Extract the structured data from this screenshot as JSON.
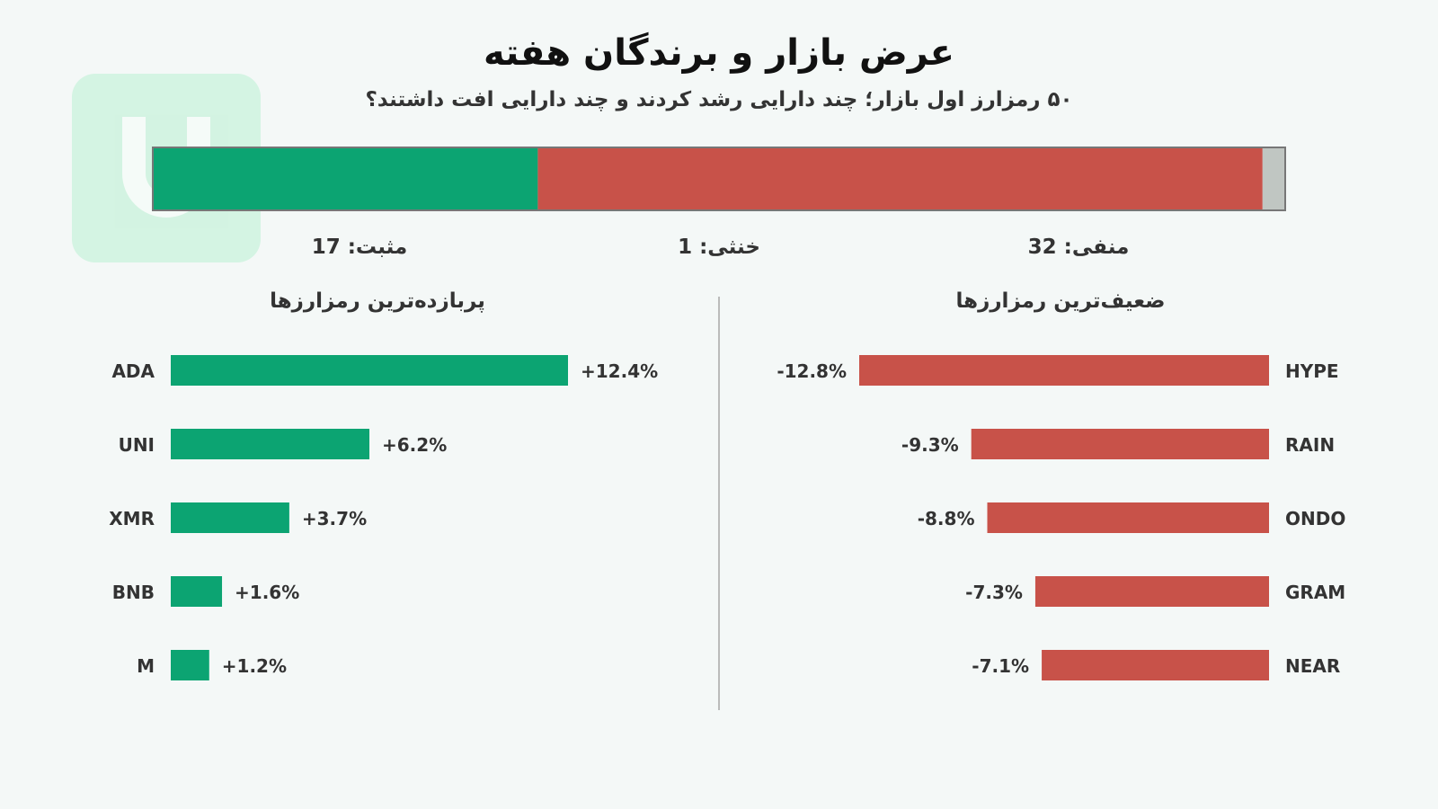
{
  "chart_data": [
    {
      "type": "bar",
      "title": "عرض بازار و برندگان هفته",
      "subtitle": "۵۰ رمزارز اول بازار؛ چند دارایی رشد کردند و چند دارایی افت داشتند؟",
      "categories": [
        "مثبت",
        "خنثی",
        "منفی"
      ],
      "values": [
        17,
        1,
        32
      ],
      "labels": [
        "مثبت: 17",
        "خنثی: 1",
        "منفی: 32"
      ],
      "colors": [
        "#0ca472",
        "#c0c6c2",
        "#c85249"
      ],
      "stacked": true,
      "grid": false
    },
    {
      "type": "bar",
      "title": "پربازده‌ترین رمزارزها",
      "categories": [
        "ADA",
        "UNI",
        "XMR",
        "BNB",
        "M"
      ],
      "values": [
        12.4,
        6.2,
        3.7,
        1.6,
        1.2
      ],
      "value_labels": [
        "+12.4%",
        "+6.2%",
        "+3.7%",
        "+1.6%",
        "+1.2%"
      ],
      "color": "#0ca472",
      "orientation": "horizontal",
      "grid": false
    },
    {
      "type": "bar",
      "title": "ضعیف‌ترین رمزارزها",
      "categories": [
        "HYPE",
        "RAIN",
        "ONDO",
        "GRAM",
        "NEAR"
      ],
      "values": [
        -12.8,
        -9.3,
        -8.8,
        -7.3,
        -7.1
      ],
      "value_labels": [
        "-12.8%",
        "-9.3%",
        "-8.8%",
        "-7.3%",
        "-7.1%"
      ],
      "color": "#c85249",
      "orientation": "horizontal",
      "grid": false
    }
  ]
}
